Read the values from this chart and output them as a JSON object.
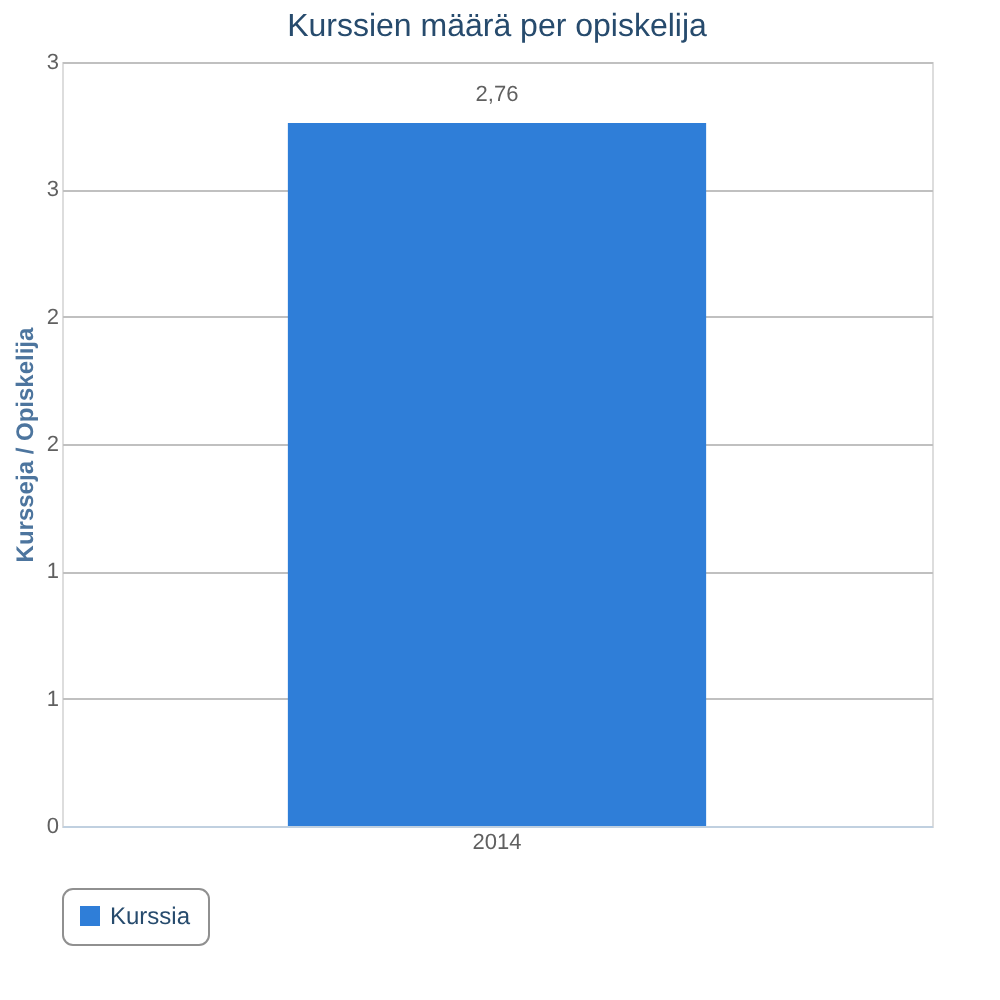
{
  "chart_data": {
    "type": "bar",
    "title": "Kurssien määrä per opiskelija",
    "ylabel": "Kursseja / Opiskelija",
    "categories": [
      "2014"
    ],
    "series": [
      {
        "name": "Kurssia",
        "color": "#2f7ed8",
        "values": [
          2.76
        ],
        "value_labels": [
          "2,76"
        ]
      }
    ],
    "ylim": [
      0,
      3
    ],
    "yticks": [
      0,
      {
        "value": 0.5,
        "label": "1"
      },
      1,
      {
        "value": 1.5,
        "label": "2"
      },
      2,
      {
        "value": 2.5,
        "label": "3"
      },
      3
    ],
    "grid": "y",
    "legend": "bottom"
  }
}
